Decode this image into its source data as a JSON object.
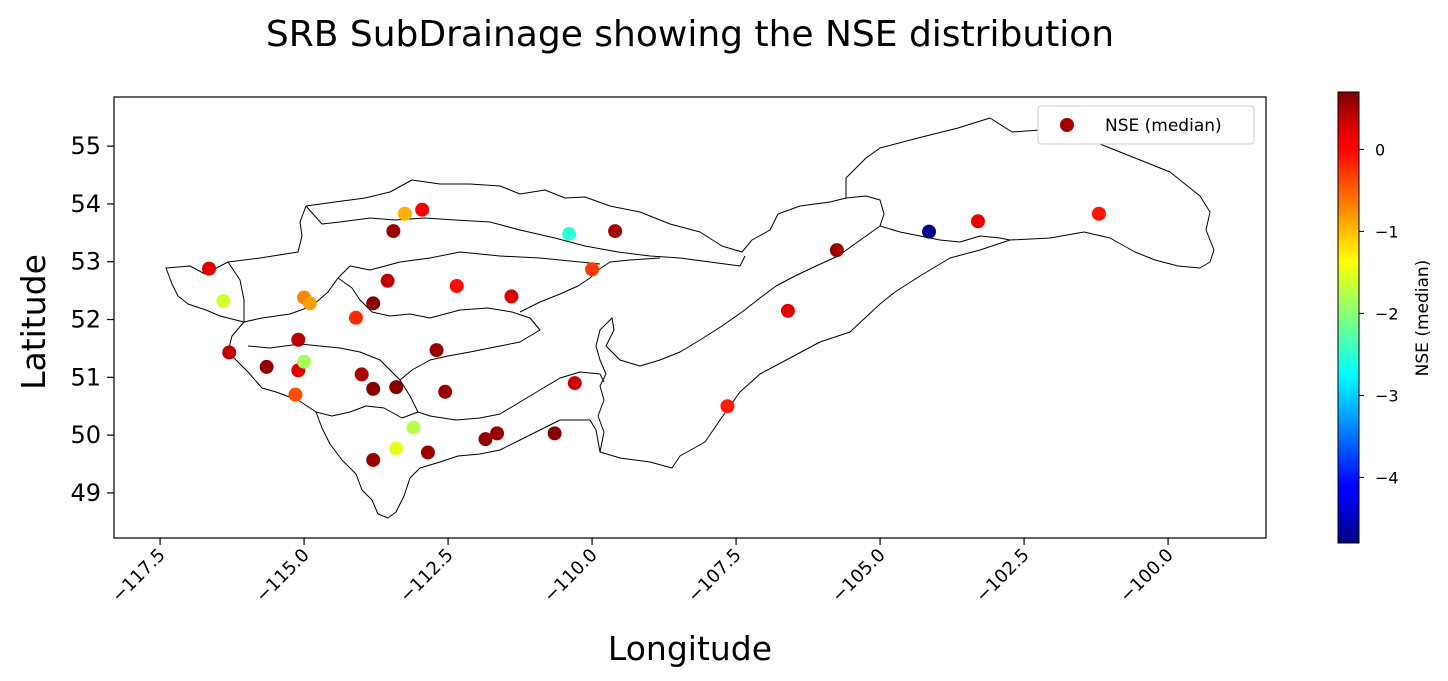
{
  "chart_data": {
    "type": "scatter",
    "title": "SRB SubDrainage showing the NSE distribution",
    "xlabel": "Longitude",
    "ylabel": "Latitude",
    "xlim": [
      -118.3,
      -98.3
    ],
    "ylim": [
      48.22,
      55.85
    ],
    "xticks": [
      -117.5,
      -115.0,
      -112.5,
      -110.0,
      -107.5,
      -105.0,
      -102.5,
      -100.0
    ],
    "xtick_labels": [
      "−117.5",
      "−115.0",
      "−112.5",
      "−110.0",
      "−107.5",
      "−105.0",
      "−102.5",
      "−100.0"
    ],
    "yticks": [
      49,
      50,
      51,
      52,
      53,
      54,
      55
    ],
    "ytick_labels": [
      "49",
      "50",
      "51",
      "52",
      "53",
      "54",
      "55"
    ],
    "xtick_rotation_deg": 45,
    "grid": false,
    "legend": {
      "entries": [
        "NSE (median)"
      ],
      "placement": "top-right",
      "marker_color": "#a50000"
    },
    "colorbar": {
      "label": "NSE (median)",
      "colormap": "jet",
      "vmin": -4.8,
      "vmax": 0.7,
      "ticks": [
        0,
        -1,
        -2,
        -3,
        -4
      ],
      "tick_labels": [
        "0",
        "−1",
        "−2",
        "−3",
        "−4"
      ]
    },
    "series": [
      {
        "name": "NSE (median)",
        "points": [
          {
            "lon": -116.65,
            "lat": 52.88,
            "nse": 0.15
          },
          {
            "lon": -116.4,
            "lat": 52.32,
            "nse": -1.6
          },
          {
            "lon": -116.3,
            "lat": 51.43,
            "nse": 0.35
          },
          {
            "lon": -115.65,
            "lat": 51.18,
            "nse": 0.6
          },
          {
            "lon": -115.15,
            "lat": 50.7,
            "nse": -0.4
          },
          {
            "lon": -115.1,
            "lat": 51.65,
            "nse": 0.4
          },
          {
            "lon": -115.1,
            "lat": 51.12,
            "nse": 0.15
          },
          {
            "lon": -115.0,
            "lat": 52.38,
            "nse": -0.7
          },
          {
            "lon": -114.9,
            "lat": 52.28,
            "nse": -0.85
          },
          {
            "lon": -115.0,
            "lat": 51.27,
            "nse": -1.85
          },
          {
            "lon": -114.1,
            "lat": 52.03,
            "nse": -0.2
          },
          {
            "lon": -114.0,
            "lat": 51.05,
            "nse": 0.45
          },
          {
            "lon": -113.8,
            "lat": 52.28,
            "nse": 0.65
          },
          {
            "lon": -113.8,
            "lat": 50.8,
            "nse": 0.65
          },
          {
            "lon": -113.8,
            "lat": 49.57,
            "nse": 0.55
          },
          {
            "lon": -113.55,
            "lat": 52.67,
            "nse": 0.35
          },
          {
            "lon": -113.45,
            "lat": 53.53,
            "nse": 0.55
          },
          {
            "lon": -113.4,
            "lat": 50.83,
            "nse": 0.68
          },
          {
            "lon": -113.4,
            "lat": 49.77,
            "nse": -1.5
          },
          {
            "lon": -113.25,
            "lat": 53.83,
            "nse": -0.95
          },
          {
            "lon": -113.1,
            "lat": 50.13,
            "nse": -1.75
          },
          {
            "lon": -112.95,
            "lat": 53.9,
            "nse": 0.05
          },
          {
            "lon": -112.85,
            "lat": 49.7,
            "nse": 0.55
          },
          {
            "lon": -112.7,
            "lat": 51.47,
            "nse": 0.55
          },
          {
            "lon": -112.55,
            "lat": 50.75,
            "nse": 0.55
          },
          {
            "lon": -112.35,
            "lat": 52.58,
            "nse": -0.05
          },
          {
            "lon": -111.85,
            "lat": 49.93,
            "nse": 0.6
          },
          {
            "lon": -111.65,
            "lat": 50.03,
            "nse": 0.55
          },
          {
            "lon": -111.4,
            "lat": 52.4,
            "nse": 0.2
          },
          {
            "lon": -110.65,
            "lat": 50.03,
            "nse": 0.65
          },
          {
            "lon": -110.4,
            "lat": 53.48,
            "nse": -2.5
          },
          {
            "lon": -110.3,
            "lat": 50.9,
            "nse": 0.3
          },
          {
            "lon": -110.0,
            "lat": 52.87,
            "nse": -0.3
          },
          {
            "lon": -109.6,
            "lat": 53.53,
            "nse": 0.5
          },
          {
            "lon": -107.65,
            "lat": 50.5,
            "nse": -0.15
          },
          {
            "lon": -106.6,
            "lat": 52.15,
            "nse": 0.15
          },
          {
            "lon": -105.75,
            "lat": 53.2,
            "nse": 0.55
          },
          {
            "lon": -104.15,
            "lat": 53.52,
            "nse": -4.75
          },
          {
            "lon": -103.3,
            "lat": 53.7,
            "nse": 0.1
          },
          {
            "lon": -101.2,
            "lat": 53.83,
            "nse": -0.1
          }
        ]
      }
    ]
  }
}
